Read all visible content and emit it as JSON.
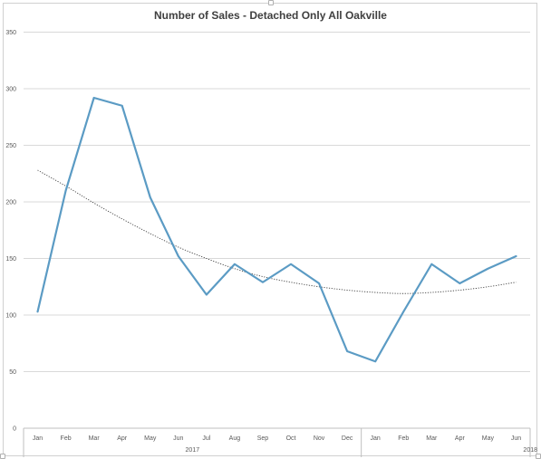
{
  "chart_data": {
    "type": "line",
    "title": "Number of Sales - Detached Only All Oakville",
    "categories": [
      "Jan",
      "Feb",
      "Mar",
      "Apr",
      "May",
      "Jun",
      "Jul",
      "Aug",
      "Sep",
      "Oct",
      "Nov",
      "Dec",
      "Jan",
      "Feb",
      "Mar",
      "Apr",
      "May",
      "Jun"
    ],
    "year_groups": [
      {
        "label": "2017",
        "start": 0,
        "end": 11
      },
      {
        "label": "2018",
        "start": 12,
        "end": 17
      }
    ],
    "series": [
      {
        "values": [
          103,
          210,
          292,
          285,
          204,
          152,
          118,
          145,
          129,
          145,
          128,
          68,
          59,
          103,
          145,
          128,
          141,
          152
        ],
        "color": "#5b9bc4"
      }
    ],
    "trendline": {
      "type": "polynomial",
      "style": "dotted",
      "color": "#404040",
      "values": [
        228,
        214,
        199,
        185,
        172,
        160,
        150,
        141,
        134,
        129,
        125,
        122,
        120,
        119,
        120,
        122,
        125,
        129
      ]
    },
    "ylim": [
      0,
      350
    ],
    "yticks": [
      0,
      50,
      100,
      150,
      200,
      250,
      300,
      350
    ],
    "grid": true,
    "legend": "none",
    "xlabel": "",
    "ylabel": ""
  }
}
